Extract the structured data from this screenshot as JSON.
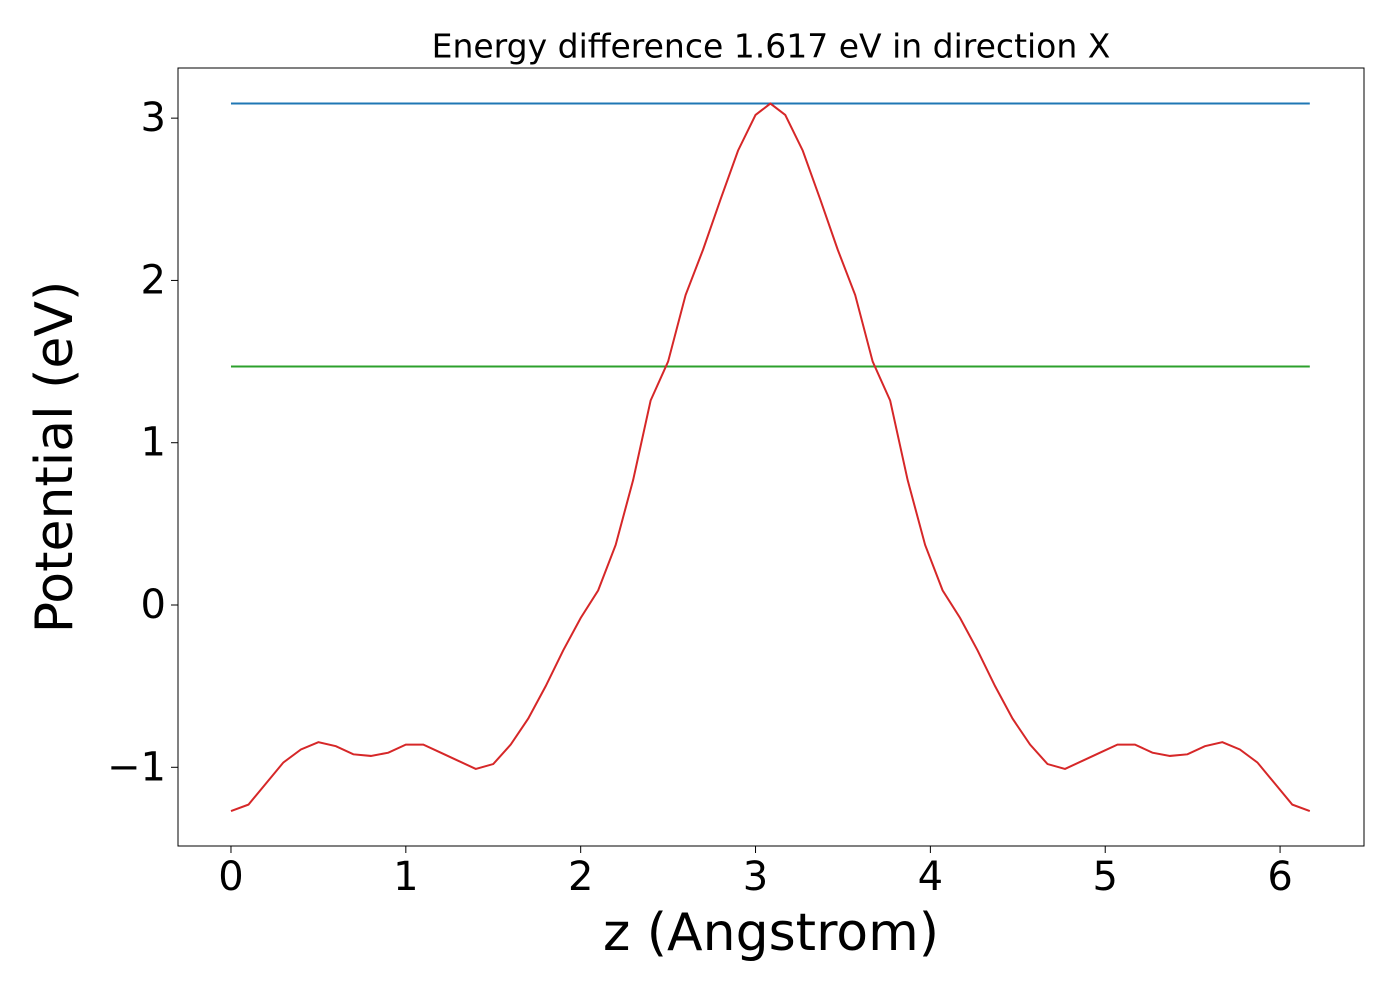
{
  "chart_data": {
    "type": "line",
    "title": "Energy difference 1.617 eV in direction X",
    "xlabel": "z (Angstrom)",
    "ylabel": "Potential (eV)",
    "xlim": [
      -0.303,
      6.48
    ],
    "ylim": [
      -1.485,
      3.309
    ],
    "xticks": [
      0,
      1,
      2,
      3,
      4,
      5,
      6
    ],
    "yticks": [
      {
        "value": -1,
        "label": "−1"
      },
      0,
      1,
      2,
      3
    ],
    "series": [
      {
        "color": "#d62728",
        "x": [
          0,
          0.1,
          0.2,
          0.3,
          0.4,
          0.5,
          0.6,
          0.7,
          0.8,
          0.9,
          1.0,
          1.1,
          1.2,
          1.3,
          1.4,
          1.5,
          1.6,
          1.7,
          1.8,
          1.9,
          2.0,
          2.1,
          2.2,
          2.3,
          2.4,
          2.5,
          2.6,
          2.7,
          2.8,
          2.9,
          3.0,
          3.085,
          3.17,
          3.27,
          3.37,
          3.47,
          3.57,
          3.67,
          3.77,
          3.87,
          3.97,
          4.07,
          4.17,
          4.27,
          4.37,
          4.47,
          4.57,
          4.67,
          4.77,
          4.87,
          4.97,
          5.07,
          5.17,
          5.27,
          5.37,
          5.47,
          5.57,
          5.67,
          5.77,
          5.87,
          5.97,
          6.07,
          6.17
        ],
        "values": [
          -1.27,
          -1.23,
          -1.1,
          -0.97,
          -0.89,
          -0.845,
          -0.87,
          -0.92,
          -0.93,
          -0.91,
          -0.86,
          -0.86,
          -0.91,
          -0.96,
          -1.01,
          -0.98,
          -0.86,
          -0.7,
          -0.5,
          -0.28,
          -0.08,
          0.09,
          0.37,
          0.77,
          1.26,
          1.5,
          1.91,
          2.19,
          2.5,
          2.8,
          3.02,
          3.09,
          3.02,
          2.8,
          2.5,
          2.19,
          1.91,
          1.5,
          1.26,
          0.77,
          0.37,
          0.09,
          -0.08,
          -0.28,
          -0.5,
          -0.7,
          -0.86,
          -0.98,
          -1.01,
          -0.96,
          -0.91,
          -0.86,
          -0.86,
          -0.91,
          -0.93,
          -0.92,
          -0.87,
          -0.845,
          -0.89,
          -0.97,
          -1.1,
          -1.23,
          -1.27
        ]
      },
      {
        "color": "#1f77b4",
        "x": [
          0,
          6.17
        ],
        "values": [
          3.09,
          3.09
        ]
      },
      {
        "color": "#2ca02c",
        "x": [
          0,
          6.17
        ],
        "values": [
          1.47,
          1.47
        ]
      }
    ]
  }
}
